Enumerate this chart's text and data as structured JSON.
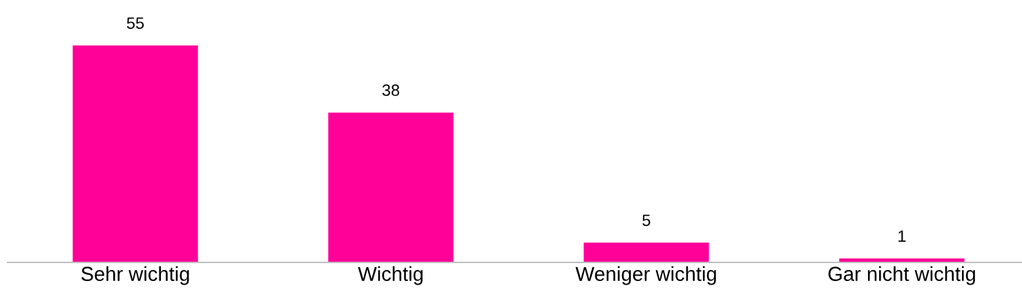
{
  "chart_data": {
    "type": "bar",
    "categories": [
      "Sehr wichtig",
      "Wichtig",
      "Weniger wichtig",
      "Gar nicht wichtig"
    ],
    "values": [
      55,
      38,
      5,
      1
    ],
    "color": "#ff0099",
    "data_labels": true,
    "grid": false,
    "legend": false
  }
}
